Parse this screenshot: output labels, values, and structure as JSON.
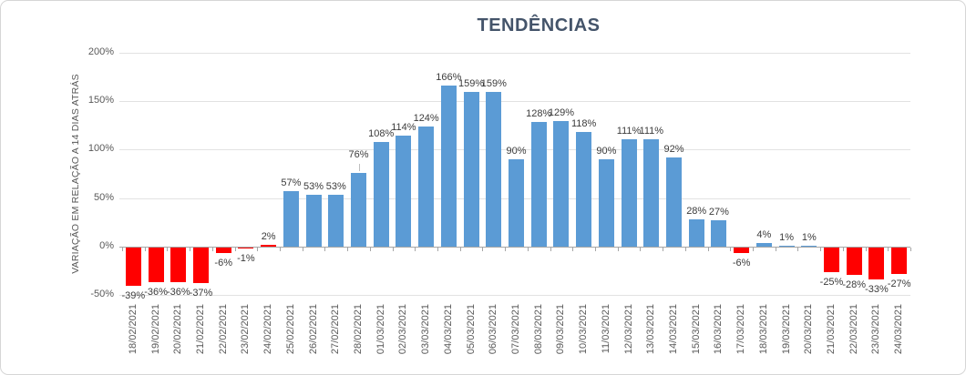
{
  "chart_data": {
    "type": "bar",
    "title": "TENDÊNCIAS",
    "xlabel": "",
    "ylabel": "VARIAÇÃO EM RELAÇÃO A 14 DIAS ATRÁS",
    "ylim": [
      -50,
      200
    ],
    "grid": true,
    "legend_position": "none",
    "y_tick_values": [
      200,
      150,
      100,
      50,
      0,
      -50
    ],
    "y_tick_labels": [
      "200%",
      "150%",
      "100%",
      "50%",
      "0%",
      "-50%"
    ],
    "categories": [
      "18/02/2021",
      "19/02/2021",
      "20/02/2021",
      "21/02/2021",
      "22/02/2021",
      "23/02/2021",
      "24/02/2021",
      "25/02/2021",
      "26/02/2021",
      "27/02/2021",
      "28/02/2021",
      "01/03/2021",
      "02/03/2021",
      "03/03/2021",
      "04/03/2021",
      "05/03/2021",
      "06/03/2021",
      "07/03/2021",
      "08/03/2021",
      "09/03/2021",
      "10/03/2021",
      "11/03/2021",
      "12/03/2021",
      "13/03/2021",
      "14/03/2021",
      "15/03/2021",
      "16/03/2021",
      "17/03/2021",
      "18/03/2021",
      "19/03/2021",
      "20/03/2021",
      "21/03/2021",
      "22/03/2021",
      "23/03/2021",
      "24/03/2021"
    ],
    "values": [
      -39,
      -36,
      -36,
      -37,
      -6,
      -1,
      2,
      57,
      53,
      53,
      76,
      108,
      114,
      124,
      166,
      159,
      159,
      90,
      128,
      129,
      118,
      90,
      111,
      111,
      92,
      28,
      27,
      -6,
      4,
      1,
      1,
      -25,
      -28,
      -33,
      -27
    ],
    "labels": [
      "-39%",
      "-36%",
      "-36%",
      "-37%",
      "-6%",
      "-1%",
      "2%",
      "57%",
      "53%",
      "53%",
      "76%",
      "108%",
      "114%",
      "124%",
      "166%",
      "159%",
      "159%",
      "90%",
      "128%",
      "129%",
      "118%",
      "90%",
      "111%",
      "111%",
      "92%",
      "28%",
      "27%",
      "-6%",
      "4%",
      "1%",
      "1%",
      "-25%",
      "-28%",
      "-33%",
      "-27%"
    ],
    "bar_colors": [
      "#FF0000",
      "#FF0000",
      "#FF0000",
      "#FF0000",
      "#FF0000",
      "#FF0000",
      "#FF0000",
      "#5B9BD5",
      "#5B9BD5",
      "#5B9BD5",
      "#5B9BD5",
      "#5B9BD5",
      "#5B9BD5",
      "#5B9BD5",
      "#5B9BD5",
      "#5B9BD5",
      "#5B9BD5",
      "#5B9BD5",
      "#5B9BD5",
      "#5B9BD5",
      "#5B9BD5",
      "#5B9BD5",
      "#5B9BD5",
      "#5B9BD5",
      "#5B9BD5",
      "#5B9BD5",
      "#5B9BD5",
      "#FF0000",
      "#5B9BD5",
      "#5B9BD5",
      "#5B9BD5",
      "#FF0000",
      "#FF0000",
      "#FF0000",
      "#FF0000"
    ],
    "label_leader_indices": [
      10
    ]
  },
  "colors": {
    "bar_blue": "#5B9BD5",
    "bar_red": "#FF0000",
    "title_text": "#44546A",
    "axis_text": "#595959",
    "data_label_text": "#3B3B3B",
    "gridline": "#E2E2E2",
    "axis_line": "#A6A6A6",
    "frame_border": "#D6D6D6"
  }
}
